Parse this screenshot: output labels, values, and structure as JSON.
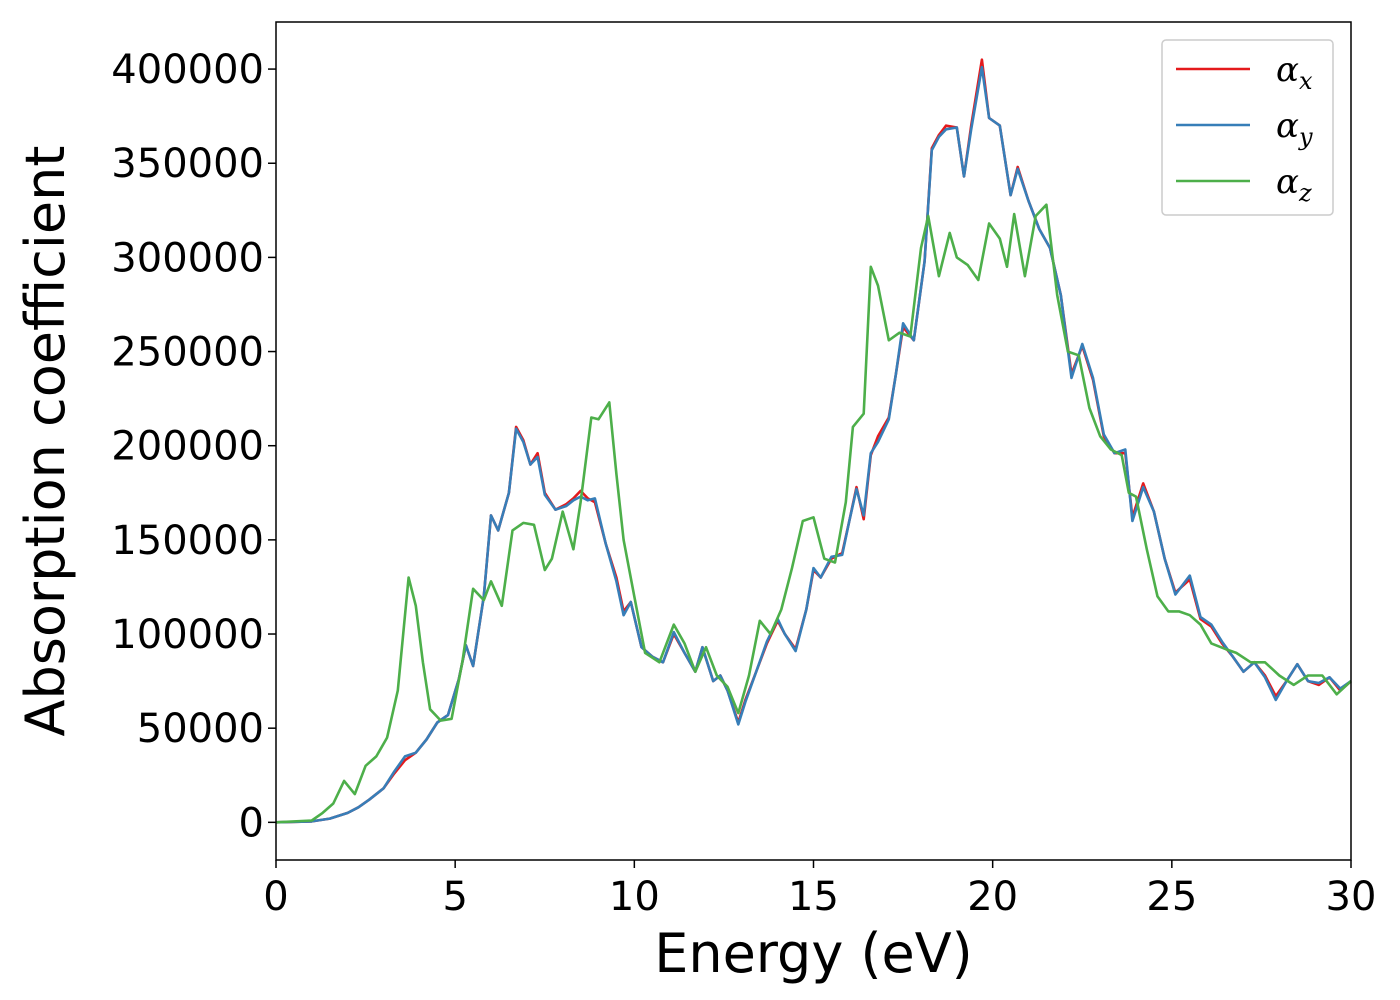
{
  "chart_data": {
    "type": "line",
    "title": "",
    "xlabel": "Energy (eV)",
    "ylabel": "Absorption coefficient",
    "xlim": [
      0,
      30
    ],
    "ylim": [
      -20000,
      425000
    ],
    "xticks": [
      0,
      5,
      10,
      15,
      20,
      25,
      30
    ],
    "yticks": [
      0,
      50000,
      100000,
      150000,
      200000,
      250000,
      300000,
      350000,
      400000
    ],
    "grid": false,
    "legend_position": "top-right",
    "series": [
      {
        "name": "α_x",
        "label_base": "α",
        "label_sub": "x",
        "color": "#e41a1c",
        "x": [
          0,
          1,
          1.5,
          2,
          2.3,
          2.6,
          3,
          3.3,
          3.6,
          3.9,
          4.2,
          4.5,
          4.8,
          5.1,
          5.3,
          5.5,
          5.8,
          6.0,
          6.2,
          6.5,
          6.7,
          6.9,
          7.1,
          7.3,
          7.5,
          7.8,
          8.1,
          8.3,
          8.5,
          8.7,
          8.9,
          9.2,
          9.5,
          9.7,
          9.9,
          10.2,
          10.5,
          10.8,
          11.1,
          11.4,
          11.7,
          11.9,
          12.2,
          12.4,
          12.6,
          12.9,
          13.1,
          13.4,
          13.7,
          14.0,
          14.2,
          14.5,
          14.8,
          15.0,
          15.2,
          15.5,
          15.8,
          16.0,
          16.2,
          16.4,
          16.6,
          16.8,
          17.1,
          17.3,
          17.5,
          17.8,
          18.1,
          18.3,
          18.5,
          18.7,
          19.0,
          19.2,
          19.4,
          19.7,
          19.9,
          20.2,
          20.5,
          20.7,
          21.0,
          21.3,
          21.6,
          21.9,
          22.2,
          22.5,
          22.8,
          23.1,
          23.4,
          23.7,
          23.9,
          24.2,
          24.5,
          24.8,
          25.1,
          25.5,
          25.8,
          26.1,
          26.4,
          26.7,
          27.0,
          27.3,
          27.6,
          27.9,
          28.2,
          28.5,
          28.8,
          29.1,
          29.4,
          29.7,
          30
        ],
        "y": [
          0,
          500,
          2000,
          5000,
          8000,
          12000,
          18000,
          26000,
          33000,
          37000,
          44000,
          53000,
          57000,
          76000,
          94000,
          83000,
          120000,
          163000,
          155000,
          175000,
          210000,
          203000,
          190000,
          196000,
          175000,
          166000,
          169000,
          172000,
          176000,
          172000,
          170000,
          148000,
          130000,
          112000,
          117000,
          93000,
          88000,
          85000,
          100000,
          90000,
          80000,
          93000,
          75000,
          78000,
          70000,
          53000,
          65000,
          80000,
          95000,
          107000,
          100000,
          92000,
          113000,
          134000,
          130000,
          140000,
          143000,
          160000,
          178000,
          161000,
          195000,
          205000,
          215000,
          238000,
          263000,
          256000,
          298000,
          358000,
          365000,
          370000,
          369000,
          343000,
          370000,
          405000,
          374000,
          370000,
          333000,
          348000,
          330000,
          315000,
          305000,
          280000,
          238000,
          253000,
          235000,
          205000,
          196000,
          196000,
          162000,
          180000,
          165000,
          140000,
          122000,
          129000,
          108000,
          104000,
          95000,
          88000,
          80000,
          85000,
          78000,
          67000,
          75000,
          84000,
          75000,
          73000,
          77000,
          70000,
          75000
        ]
      },
      {
        "name": "α_y",
        "label_base": "α",
        "label_sub": "y",
        "color": "#377eb8",
        "x": [
          0,
          1,
          1.5,
          2,
          2.3,
          2.6,
          3,
          3.3,
          3.6,
          3.9,
          4.2,
          4.5,
          4.8,
          5.1,
          5.3,
          5.5,
          5.8,
          6.0,
          6.2,
          6.5,
          6.7,
          6.9,
          7.1,
          7.3,
          7.5,
          7.8,
          8.1,
          8.3,
          8.5,
          8.7,
          8.9,
          9.2,
          9.5,
          9.7,
          9.9,
          10.2,
          10.5,
          10.8,
          11.1,
          11.4,
          11.7,
          11.9,
          12.2,
          12.4,
          12.6,
          12.9,
          13.1,
          13.4,
          13.7,
          14.0,
          14.2,
          14.5,
          14.8,
          15.0,
          15.2,
          15.5,
          15.8,
          16.0,
          16.2,
          16.4,
          16.6,
          16.8,
          17.1,
          17.3,
          17.5,
          17.8,
          18.1,
          18.3,
          18.5,
          18.7,
          19.0,
          19.2,
          19.4,
          19.7,
          19.9,
          20.2,
          20.5,
          20.7,
          21.0,
          21.3,
          21.6,
          21.9,
          22.2,
          22.5,
          22.8,
          23.1,
          23.4,
          23.7,
          23.9,
          24.2,
          24.5,
          24.8,
          25.1,
          25.5,
          25.8,
          26.1,
          26.4,
          26.7,
          27.0,
          27.3,
          27.6,
          27.9,
          28.2,
          28.5,
          28.8,
          29.1,
          29.4,
          29.7,
          30
        ],
        "y": [
          0,
          500,
          2000,
          5000,
          8000,
          12000,
          18000,
          27000,
          35000,
          37000,
          44000,
          53000,
          57000,
          76000,
          94000,
          83000,
          120000,
          163000,
          155000,
          175000,
          209000,
          202000,
          190000,
          194000,
          174000,
          166000,
          168000,
          171000,
          173000,
          171000,
          172000,
          148000,
          128000,
          110000,
          117000,
          93000,
          88000,
          85000,
          101000,
          90000,
          80000,
          93000,
          75000,
          78000,
          70000,
          52000,
          64000,
          80000,
          96000,
          108000,
          100000,
          91000,
          113000,
          135000,
          130000,
          141000,
          142000,
          160000,
          177000,
          163000,
          196000,
          202000,
          214000,
          238000,
          265000,
          256000,
          298000,
          357000,
          364000,
          368000,
          369000,
          343000,
          368000,
          401000,
          374000,
          370000,
          333000,
          347000,
          330000,
          315000,
          305000,
          280000,
          236000,
          254000,
          236000,
          206000,
          196000,
          198000,
          160000,
          178000,
          165000,
          140000,
          121000,
          131000,
          109000,
          105000,
          96000,
          88000,
          80000,
          85000,
          77000,
          65000,
          75000,
          84000,
          75000,
          74000,
          77000,
          71000,
          75000
        ]
      },
      {
        "name": "α_z",
        "label_base": "α",
        "label_sub": "z",
        "color": "#4daf4a",
        "x": [
          0,
          1,
          1.3,
          1.6,
          1.9,
          2.2,
          2.5,
          2.8,
          3.1,
          3.4,
          3.7,
          3.9,
          4.1,
          4.3,
          4.6,
          4.9,
          5.2,
          5.5,
          5.8,
          6.0,
          6.3,
          6.6,
          6.9,
          7.2,
          7.5,
          7.7,
          8.0,
          8.3,
          8.5,
          8.8,
          9.0,
          9.3,
          9.5,
          9.7,
          10.0,
          10.3,
          10.7,
          11.1,
          11.4,
          11.7,
          12.0,
          12.3,
          12.6,
          12.9,
          13.2,
          13.5,
          13.8,
          14.1,
          14.4,
          14.7,
          15.0,
          15.3,
          15.6,
          15.9,
          16.1,
          16.4,
          16.6,
          16.8,
          17.1,
          17.4,
          17.7,
          18.0,
          18.2,
          18.5,
          18.8,
          19.0,
          19.3,
          19.6,
          19.9,
          20.2,
          20.4,
          20.6,
          20.9,
          21.2,
          21.5,
          21.8,
          22.1,
          22.4,
          22.7,
          23.0,
          23.3,
          23.6,
          23.8,
          24.0,
          24.3,
          24.6,
          24.9,
          25.2,
          25.5,
          25.8,
          26.1,
          26.5,
          26.8,
          27.2,
          27.6,
          28.0,
          28.4,
          28.8,
          29.2,
          29.6,
          30
        ],
        "y": [
          0,
          1000,
          5000,
          10000,
          22000,
          15000,
          30000,
          35000,
          45000,
          70000,
          130000,
          115000,
          85000,
          60000,
          54000,
          55000,
          85000,
          124000,
          118000,
          128000,
          115000,
          155000,
          159000,
          158000,
          134000,
          140000,
          165000,
          145000,
          170000,
          215000,
          214000,
          223000,
          185000,
          150000,
          120000,
          90000,
          85000,
          105000,
          95000,
          80000,
          93000,
          78000,
          72000,
          58000,
          78000,
          107000,
          100000,
          113000,
          135000,
          160000,
          162000,
          140000,
          138000,
          170000,
          210000,
          217000,
          295000,
          285000,
          256000,
          260000,
          258000,
          305000,
          322000,
          290000,
          313000,
          300000,
          296000,
          288000,
          318000,
          310000,
          295000,
          323000,
          290000,
          322000,
          328000,
          280000,
          250000,
          248000,
          220000,
          205000,
          198000,
          195000,
          175000,
          173000,
          145000,
          120000,
          112000,
          112000,
          110000,
          105000,
          95000,
          92000,
          90000,
          85000,
          85000,
          78000,
          73000,
          78000,
          78000,
          68000,
          75000
        ]
      }
    ]
  }
}
